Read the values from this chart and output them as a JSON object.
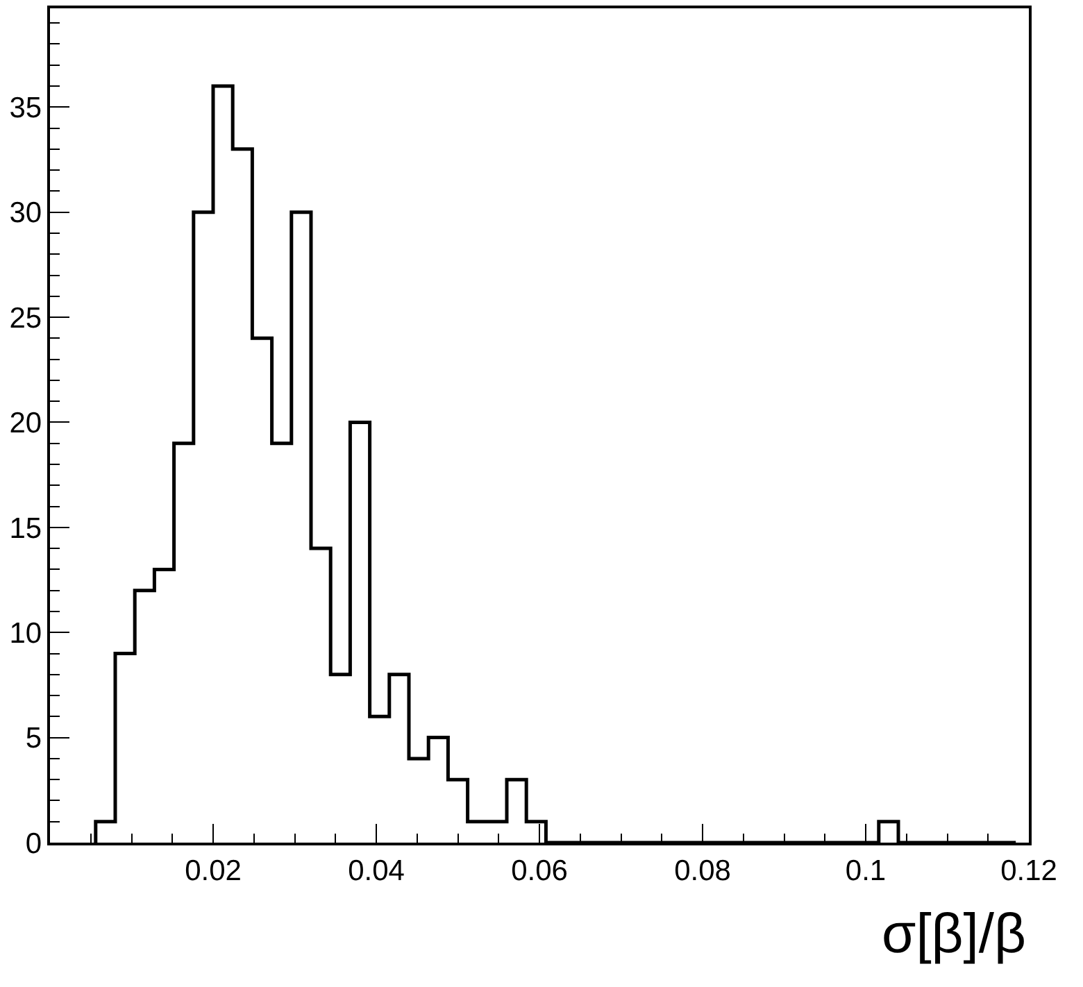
{
  "chart_data": {
    "type": "histogram",
    "xlabel": "σ[β]/β",
    "bins": [
      0.0056,
      0.008,
      0.0104,
      0.0128,
      0.0152,
      0.0176,
      0.02,
      0.0224,
      0.0248,
      0.0272,
      0.0296,
      0.032,
      0.0344,
      0.0368,
      0.0392,
      0.0416,
      0.044,
      0.0464,
      0.0488,
      0.0512,
      0.0536,
      0.056,
      0.0584,
      0.0608,
      0.0632,
      0.0656,
      0.068,
      0.0704,
      0.0728,
      0.0752,
      0.0776,
      0.08,
      0.0824,
      0.0848,
      0.0872,
      0.0896,
      0.092,
      0.0944,
      0.0968,
      0.0992,
      0.1016,
      0.104,
      0.1064,
      0.1088,
      0.1112,
      0.1136,
      0.116,
      0.1184
    ],
    "values": [
      1,
      9,
      12,
      13,
      19,
      30,
      36,
      33,
      24,
      19,
      30,
      14,
      8,
      20,
      6,
      8,
      4,
      5,
      3,
      1,
      1,
      3,
      1,
      0,
      0,
      0,
      0,
      0,
      0,
      0,
      0,
      0,
      0,
      0,
      0,
      0,
      0,
      0,
      0,
      0,
      1,
      0,
      0,
      0,
      0,
      0,
      0
    ],
    "color": "#000000",
    "xlim": [
      0,
      0.12
    ],
    "xticks": [
      0.02,
      0.04,
      0.06,
      0.08,
      0.1,
      0.12
    ],
    "ylim": [
      0,
      39.7
    ],
    "yticks": [
      0,
      5,
      10,
      15,
      20,
      25,
      30,
      35
    ]
  }
}
